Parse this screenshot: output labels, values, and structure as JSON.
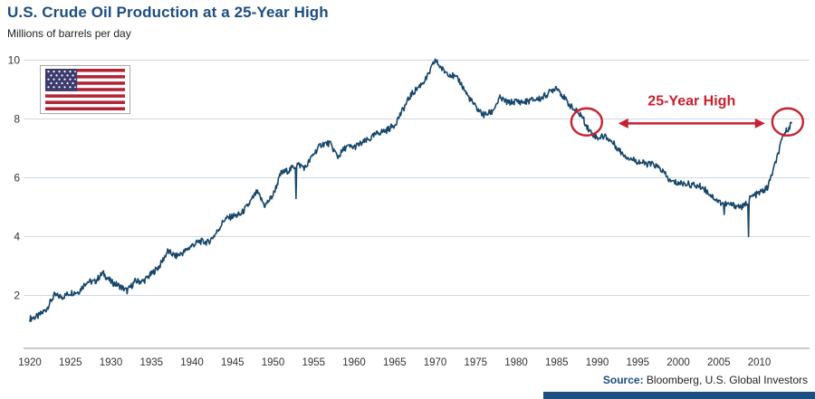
{
  "header": {
    "title": "U.S. Crude Oil Production at a 25-Year High",
    "subtitle": "Millions of barrels per day"
  },
  "source": {
    "label": "Source:",
    "text": " Bloomberg, U.S. Global Investors"
  },
  "colors": {
    "navy": "#1c4e80",
    "line": "#17466b",
    "red": "#c8202f",
    "grid": "#ccdae3",
    "axis": "#8a97a0",
    "text": "#333333"
  },
  "chart_data": {
    "type": "line",
    "title": "U.S. Crude Oil Production at a 25-Year High",
    "xlabel": "",
    "ylabel": "Millions of barrels per day",
    "xlim": [
      1919.5,
      2014.8
    ],
    "ylim": [
      0.2,
      10.35
    ],
    "grid": "horizontal",
    "x_ticks": [
      1920,
      1925,
      1930,
      1935,
      1940,
      1945,
      1950,
      1955,
      1960,
      1965,
      1970,
      1975,
      1980,
      1985,
      1990,
      1995,
      2000,
      2005,
      2010
    ],
    "y_ticks": [
      2,
      4,
      6,
      8,
      10
    ],
    "legend": "none",
    "series": [
      {
        "name": "U.S. crude oil production (millions of barrels per day)",
        "x": [
          1920,
          1921,
          1922,
          1923,
          1924,
          1925,
          1926,
          1927,
          1928,
          1929,
          1930,
          1931,
          1932,
          1933,
          1934,
          1935,
          1936,
          1937,
          1938,
          1939,
          1940,
          1941,
          1942,
          1943,
          1944,
          1945,
          1946,
          1947,
          1948,
          1949,
          1950,
          1951,
          1952,
          1953,
          1954,
          1955,
          1956,
          1957,
          1958,
          1959,
          1960,
          1961,
          1962,
          1963,
          1964,
          1965,
          1966,
          1967,
          1968,
          1969,
          1970,
          1971,
          1972,
          1973,
          1974,
          1975,
          1976,
          1977,
          1978,
          1979,
          1980,
          1981,
          1982,
          1983,
          1984,
          1985,
          1986,
          1987,
          1988,
          1989,
          1990,
          1991,
          1992,
          1993,
          1994,
          1995,
          1996,
          1997,
          1998,
          1999,
          2000,
          2001,
          2002,
          2003,
          2004,
          2005,
          2006,
          2007,
          2008,
          2009,
          2010,
          2011,
          2012,
          2013,
          2014
        ],
        "values": [
          1.21,
          1.29,
          1.52,
          2.0,
          1.95,
          2.09,
          2.12,
          2.47,
          2.46,
          2.76,
          2.46,
          2.33,
          2.15,
          2.48,
          2.48,
          2.73,
          3.0,
          3.5,
          3.33,
          3.47,
          3.7,
          3.84,
          3.8,
          4.12,
          4.58,
          4.69,
          4.75,
          5.09,
          5.52,
          5.05,
          5.41,
          6.16,
          6.26,
          6.46,
          6.34,
          6.81,
          7.15,
          7.17,
          6.71,
          7.05,
          7.04,
          7.18,
          7.33,
          7.54,
          7.61,
          7.8,
          8.3,
          8.81,
          9.1,
          9.4,
          10.0,
          9.65,
          9.5,
          9.3,
          8.8,
          8.4,
          8.13,
          8.24,
          8.71,
          8.55,
          8.6,
          8.57,
          8.65,
          8.69,
          8.88,
          9.1,
          8.68,
          8.35,
          8.14,
          7.61,
          7.36,
          7.42,
          7.17,
          6.85,
          6.66,
          6.56,
          6.47,
          6.45,
          6.25,
          5.88,
          5.82,
          5.8,
          5.74,
          5.68,
          5.42,
          5.18,
          5.1,
          5.06,
          5.0,
          5.35,
          5.48,
          5.65,
          6.5,
          7.47,
          7.85
        ]
      }
    ],
    "spikes": [
      {
        "x": 1952.8,
        "v": 5.3
      },
      {
        "x": 2005.7,
        "v": 4.75
      },
      {
        "x": 2008.7,
        "v": 4.0
      }
    ],
    "annotations": {
      "circles": [
        {
          "x": 1988.7,
          "y": 7.9
        },
        {
          "x": 2013.5,
          "y": 7.9
        }
      ],
      "arrow": {
        "x1": 1992.6,
        "x2": 2010.7,
        "y": 7.85,
        "label": "25-Year High"
      }
    }
  }
}
